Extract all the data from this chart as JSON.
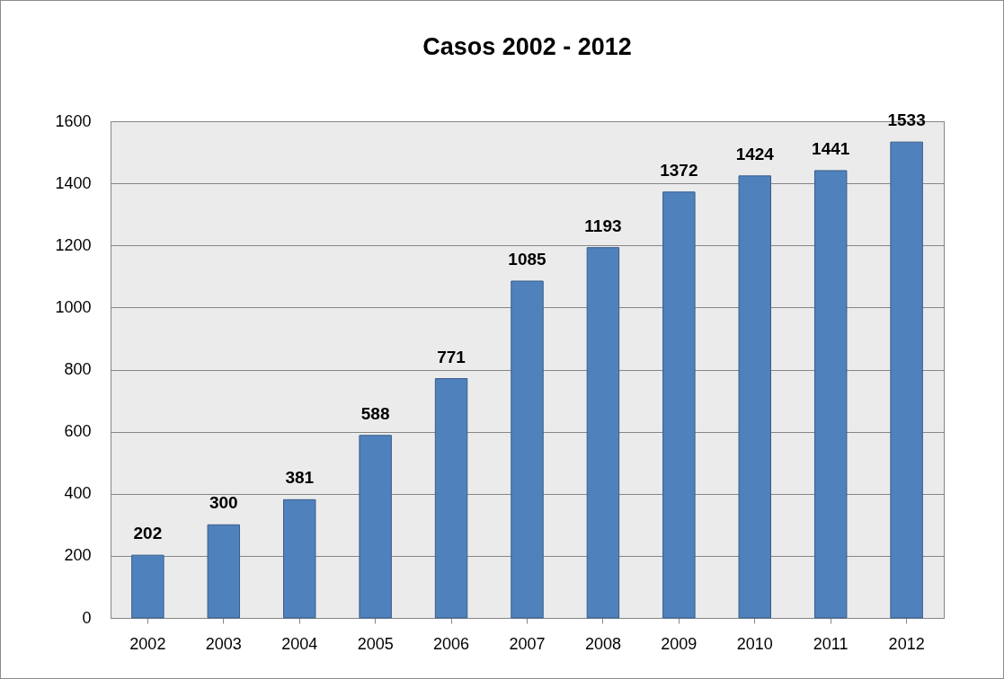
{
  "chart_data": {
    "type": "bar",
    "title": "Casos 2002 - 2012",
    "categories": [
      "2002",
      "2003",
      "2004",
      "2005",
      "2006",
      "2007",
      "2008",
      "2009",
      "2010",
      "2011",
      "2012"
    ],
    "series": [
      {
        "color": "#4f81bd",
        "values": [
          202,
          300,
          381,
          588,
          771,
          1085,
          1193,
          1372,
          1424,
          1441,
          1533
        ]
      }
    ],
    "ylim": [
      0,
      1600
    ],
    "yticks": [
      0,
      200,
      400,
      600,
      800,
      1000,
      1200,
      1400,
      1600
    ],
    "grid": "y",
    "data_labels": true
  }
}
